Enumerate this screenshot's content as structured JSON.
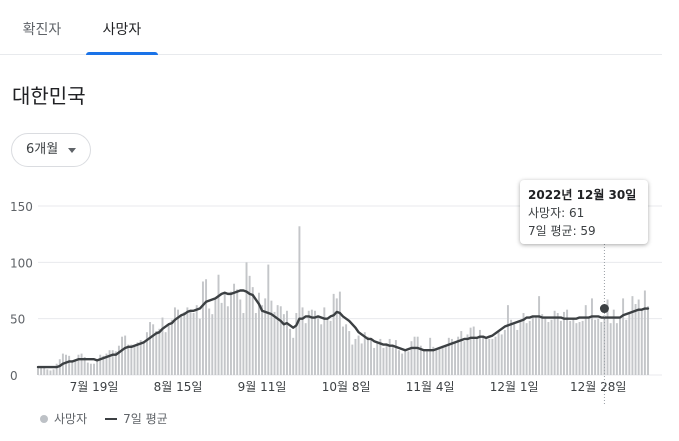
{
  "tabs": [
    {
      "label": "확진자",
      "active": false
    },
    {
      "label": "사망자",
      "active": true
    }
  ],
  "region": "대한민국",
  "period_select": {
    "label": "6개월"
  },
  "colors": {
    "bars": "#c4c6c9",
    "avg_line": "#3c4043",
    "accent": "#1a73e8"
  },
  "tooltip": {
    "date": "2022년 12월 30일",
    "deaths_line": "사망자: 61",
    "avg_line": "7일 평균: 59"
  },
  "legend": {
    "deaths": "사망자",
    "avg": "7일 평균"
  },
  "chart_data": {
    "type": "bar",
    "series": [
      {
        "name": "사망자",
        "type": "bar"
      },
      {
        "name": "7일 평균",
        "type": "line"
      }
    ],
    "x_start": "2022-07-01",
    "x_end": "2022-12-30",
    "x_tick_labels": [
      "7월 19일",
      "8월 15일",
      "9월 11일",
      "10월 8일",
      "11월 4일",
      "12월 1일",
      "12월 28일"
    ],
    "y_tick_labels": [
      "0",
      "50",
      "100",
      "150"
    ],
    "ylim": [
      0,
      150
    ],
    "bar_values": [
      6,
      8,
      7,
      5,
      4,
      5,
      10,
      14,
      19,
      18,
      17,
      13,
      13,
      18,
      19,
      16,
      11,
      10,
      10,
      12,
      18,
      17,
      19,
      22,
      22,
      21,
      26,
      34,
      35,
      27,
      27,
      27,
      29,
      31,
      30,
      38,
      47,
      45,
      39,
      41,
      51,
      38,
      44,
      49,
      60,
      58,
      53,
      56,
      60,
      57,
      55,
      62,
      50,
      83,
      85,
      59,
      54,
      67,
      89,
      64,
      73,
      61,
      74,
      81,
      76,
      67,
      55,
      100,
      88,
      78,
      55,
      73,
      62,
      68,
      98,
      66,
      56,
      62,
      61,
      54,
      57,
      41,
      33,
      55,
      132,
      60,
      46,
      57,
      58,
      57,
      51,
      45,
      60,
      50,
      48,
      72,
      68,
      74,
      43,
      45,
      39,
      27,
      32,
      35,
      28,
      38,
      34,
      32,
      24,
      28,
      32,
      24,
      28,
      32,
      25,
      31,
      22,
      19,
      22,
      21,
      30,
      34,
      34,
      26,
      23,
      21,
      33,
      25,
      23,
      25,
      26,
      26,
      33,
      32,
      28,
      34,
      39,
      30,
      36,
      42,
      43,
      33,
      40,
      34,
      33,
      32,
      32,
      34,
      38,
      36,
      40,
      62,
      49,
      45,
      40,
      48,
      55,
      46,
      48,
      52,
      51,
      70,
      54,
      51,
      47,
      49,
      57,
      55,
      48,
      56,
      58,
      48,
      50,
      46,
      47,
      48,
      62,
      52,
      68,
      49,
      50,
      47,
      53,
      67,
      46,
      58,
      46,
      50,
      68,
      49,
      55,
      70,
      63,
      67,
      58,
      75,
      61
    ],
    "avg_values": [
      7,
      7,
      7,
      7,
      7,
      7,
      7,
      8,
      10,
      11,
      12,
      12,
      13,
      14,
      14,
      14,
      14,
      14,
      14,
      13,
      14,
      15,
      16,
      17,
      18,
      18,
      20,
      22,
      24,
      25,
      25,
      26,
      27,
      28,
      29,
      31,
      33,
      35,
      37,
      38,
      41,
      43,
      45,
      46,
      49,
      51,
      53,
      54,
      56,
      57,
      57,
      58,
      59,
      62,
      65,
      66,
      67,
      68,
      70,
      72,
      73,
      72,
      72,
      73,
      74,
      75,
      75,
      74,
      72,
      71,
      67,
      63,
      57,
      56,
      55,
      54,
      52,
      50,
      48,
      45,
      46,
      44,
      42,
      44,
      50,
      50,
      52,
      52,
      51,
      51,
      52,
      51,
      50,
      50,
      52,
      53,
      56,
      55,
      52,
      50,
      48,
      45,
      42,
      38,
      36,
      34,
      32,
      32,
      30,
      29,
      28,
      27,
      27,
      26,
      26,
      25,
      24,
      23,
      22,
      23,
      24,
      24,
      24,
      23,
      22,
      22,
      22,
      22,
      23,
      24,
      25,
      26,
      27,
      28,
      29,
      30,
      31,
      32,
      32,
      33,
      33,
      33,
      34,
      34,
      33,
      34,
      35,
      37,
      39,
      41,
      43,
      44,
      45,
      46,
      47,
      48,
      49,
      51,
      51,
      52,
      52,
      52,
      51,
      51,
      51,
      51,
      51,
      51,
      51,
      50,
      50,
      50,
      50,
      50,
      51,
      51,
      51,
      51,
      52,
      52,
      52,
      51,
      51,
      51,
      51,
      51,
      51,
      51,
      53,
      54,
      55,
      56,
      57,
      58,
      58,
      59,
      59
    ],
    "highlight": {
      "date": "2022-12-30",
      "deaths": 61,
      "avg": 59
    },
    "legend_position": "bottom-left",
    "grid": true
  }
}
